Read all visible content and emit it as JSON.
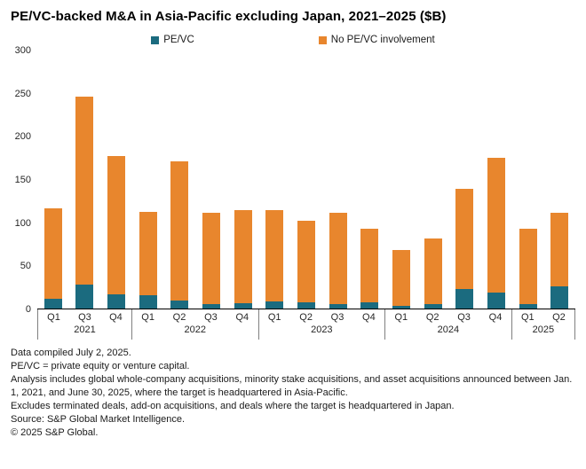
{
  "title": "PE/VC-backed M&A in Asia-Pacific excluding Japan, 2021–2025 ($B)",
  "legend": [
    {
      "label": "PE/VC",
      "color": "#1b6b7f"
    },
    {
      "label": "No PE/VC involvement",
      "color": "#e8862d"
    }
  ],
  "chart_data": {
    "type": "bar",
    "stacked": true,
    "title": "PE/VC-backed M&A in Asia-Pacific excluding Japan, 2021–2025 ($B)",
    "xlabel": "",
    "ylabel": "",
    "ylim": [
      0,
      300
    ],
    "yticks": [
      0,
      50,
      100,
      150,
      200,
      250,
      300
    ],
    "grid": false,
    "legend_position": "top",
    "groups": [
      {
        "year": "2021",
        "quarters": [
          "Q1",
          "Q3",
          "Q4"
        ]
      },
      {
        "year": "2022",
        "quarters": [
          "Q1",
          "Q2",
          "Q3",
          "Q4"
        ]
      },
      {
        "year": "2023",
        "quarters": [
          "Q1",
          "Q2",
          "Q3",
          "Q4"
        ]
      },
      {
        "year": "2024",
        "quarters": [
          "Q1",
          "Q2",
          "Q3",
          "Q4"
        ]
      },
      {
        "year": "2025",
        "quarters": [
          "Q1",
          "Q2"
        ]
      }
    ],
    "categories": [
      "Q1 2021",
      "Q3 2021",
      "Q4 2021",
      "Q1 2022",
      "Q2 2022",
      "Q3 2022",
      "Q4 2022",
      "Q1 2023",
      "Q2 2023",
      "Q3 2023",
      "Q4 2023",
      "Q1 2024",
      "Q2 2024",
      "Q3 2024",
      "Q4 2024",
      "Q1 2025",
      "Q2 2025"
    ],
    "series": [
      {
        "name": "PE/VC",
        "color": "#1b6b7f",
        "values": [
          11,
          28,
          16,
          15,
          9,
          5,
          6,
          8,
          7,
          5,
          7,
          3,
          5,
          23,
          18,
          5,
          26
        ]
      },
      {
        "name": "No PE/VC involvement",
        "color": "#e8862d",
        "values": [
          105,
          218,
          161,
          97,
          162,
          106,
          108,
          106,
          95,
          106,
          85,
          65,
          76,
          116,
          157,
          87,
          85
        ]
      }
    ]
  },
  "footer": {
    "lines": [
      "Data compiled July 2, 2025.",
      "PE/VC = private equity or venture capital.",
      "Analysis includes global whole-company acquisitions, minority stake acquisitions, and asset acquisitions announced between Jan. 1, 2021, and June 30, 2025, where the target is headquartered in Asia-Pacific.",
      "Excludes terminated deals, add-on acquisitions, and deals where the target is headquartered in Japan.",
      "Source: S&P Global Market Intelligence.",
      "© 2025 S&P Global."
    ]
  }
}
